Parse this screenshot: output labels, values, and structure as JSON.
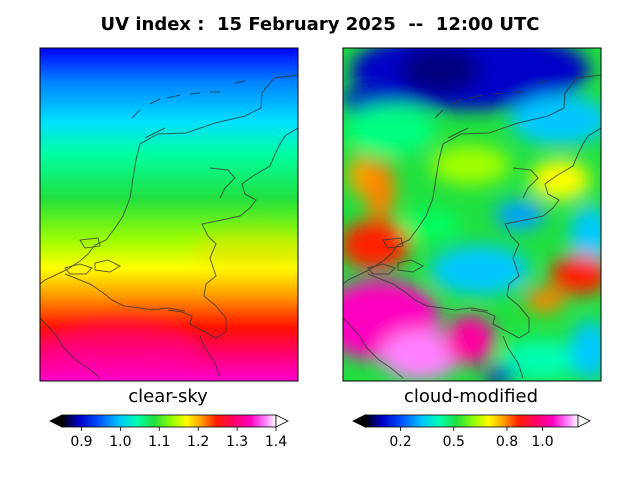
{
  "title": "UV index :  15 February 2025  --  12:00 UTC",
  "panels": [
    {
      "label": "clear-sky",
      "colorbar": {
        "min": 0.85,
        "max": 1.4,
        "ticks": [
          "0.9",
          "1.0",
          "1.1",
          "1.2",
          "1.3",
          "1.4"
        ],
        "tick_values": [
          0.9,
          1.0,
          1.1,
          1.2,
          1.3,
          1.4
        ],
        "extend": "both"
      }
    },
    {
      "label": "cloud-modified",
      "colorbar": {
        "min": 0.0,
        "max": 1.2,
        "ticks": [
          "0.2",
          "0.5",
          "0.8",
          "1.0"
        ],
        "tick_values": [
          0.2,
          0.5,
          0.8,
          1.0
        ],
        "extend": "both"
      }
    }
  ],
  "colormap": [
    "#000000",
    "#0000c8",
    "#0050ff",
    "#00c8ff",
    "#00ffb0",
    "#20e040",
    "#a0ff00",
    "#ffff00",
    "#ffa000",
    "#ff2000",
    "#ff0060",
    "#ff00c0",
    "#ff80ff",
    "#ffffff"
  ],
  "map_region": "Netherlands"
}
